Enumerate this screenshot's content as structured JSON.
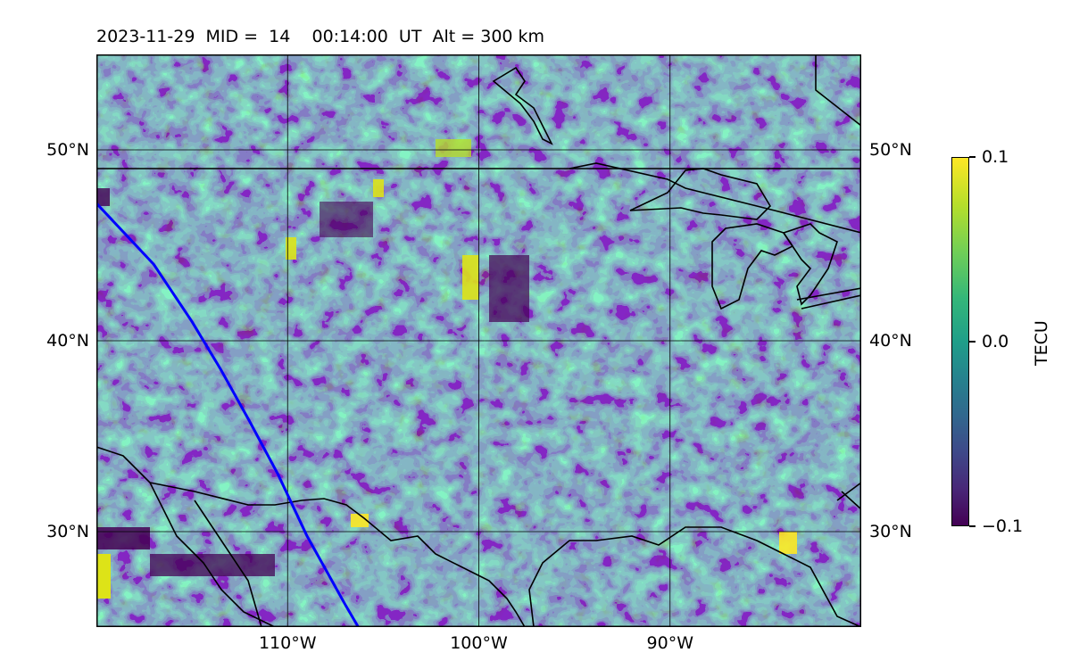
{
  "title": "2023-11-29  MID =  14    00:14:00  UT  Alt = 300 km",
  "map": {
    "lon_range": [
      -120,
      -80
    ],
    "lat_range": [
      25,
      55
    ],
    "lat_ticks": [
      {
        "value": 30,
        "label": "30°N"
      },
      {
        "value": 40,
        "label": "40°N"
      },
      {
        "value": 50,
        "label": "50°N"
      }
    ],
    "lon_ticks": [
      {
        "value": -110,
        "label": "110°W"
      },
      {
        "value": -100,
        "label": "100°W"
      },
      {
        "value": -90,
        "label": "90°W"
      }
    ],
    "colormap": "viridis",
    "grid": true,
    "track_color": "#0000ff",
    "track": [
      [
        -120,
        47.2
      ],
      [
        -117,
        44.0
      ],
      [
        -115,
        41.0
      ],
      [
        -113.5,
        38.5
      ],
      [
        -112,
        35.8
      ],
      [
        -110.5,
        33.0
      ],
      [
        -109,
        29.8
      ],
      [
        -107,
        26.2
      ],
      [
        -106.3,
        25.0
      ]
    ]
  },
  "colorbar": {
    "label": "TECU",
    "ticks": [
      {
        "value": 0.1,
        "label": "0.1"
      },
      {
        "value": 0.0,
        "label": "0.0"
      },
      {
        "value": -0.1,
        "label": "−0.1"
      }
    ],
    "range": [
      -0.1,
      0.1
    ]
  }
}
